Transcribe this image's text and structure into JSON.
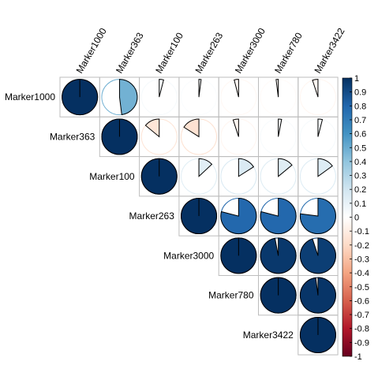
{
  "chart_data": {
    "type": "heatmap",
    "method": "pie",
    "matrix_shape": "upper",
    "variables": [
      "Marker1000",
      "Marker363",
      "Marker100",
      "Marker263",
      "Marker3000",
      "Marker780",
      "Marker3422"
    ],
    "cells": [
      {
        "row": "Marker1000",
        "col": "Marker1000",
        "value": 1.0
      },
      {
        "row": "Marker1000",
        "col": "Marker363",
        "value": 0.48
      },
      {
        "row": "Marker1000",
        "col": "Marker100",
        "value": 0.04
      },
      {
        "row": "Marker1000",
        "col": "Marker263",
        "value": 0.02
      },
      {
        "row": "Marker1000",
        "col": "Marker3000",
        "value": -0.04
      },
      {
        "row": "Marker1000",
        "col": "Marker780",
        "value": -0.02
      },
      {
        "row": "Marker1000",
        "col": "Marker3422",
        "value": -0.05
      },
      {
        "row": "Marker363",
        "col": "Marker363",
        "value": 1.0
      },
      {
        "row": "Marker363",
        "col": "Marker100",
        "value": -0.14
      },
      {
        "row": "Marker363",
        "col": "Marker263",
        "value": -0.16
      },
      {
        "row": "Marker363",
        "col": "Marker3000",
        "value": -0.05
      },
      {
        "row": "Marker363",
        "col": "Marker780",
        "value": 0.03
      },
      {
        "row": "Marker363",
        "col": "Marker3422",
        "value": 0.04
      },
      {
        "row": "Marker100",
        "col": "Marker100",
        "value": 1.0
      },
      {
        "row": "Marker100",
        "col": "Marker263",
        "value": 0.13
      },
      {
        "row": "Marker100",
        "col": "Marker3000",
        "value": 0.16
      },
      {
        "row": "Marker100",
        "col": "Marker780",
        "value": 0.14
      },
      {
        "row": "Marker100",
        "col": "Marker3422",
        "value": 0.15
      },
      {
        "row": "Marker263",
        "col": "Marker263",
        "value": 1.0
      },
      {
        "row": "Marker263",
        "col": "Marker3000",
        "value": 0.79
      },
      {
        "row": "Marker263",
        "col": "Marker780",
        "value": 0.79
      },
      {
        "row": "Marker263",
        "col": "Marker3422",
        "value": 0.77
      },
      {
        "row": "Marker3000",
        "col": "Marker3000",
        "value": 1.0
      },
      {
        "row": "Marker3000",
        "col": "Marker780",
        "value": 0.97
      },
      {
        "row": "Marker3000",
        "col": "Marker3422",
        "value": 0.95
      },
      {
        "row": "Marker780",
        "col": "Marker780",
        "value": 1.0
      },
      {
        "row": "Marker780",
        "col": "Marker3422",
        "value": 0.98
      },
      {
        "row": "Marker3422",
        "col": "Marker3422",
        "value": 1.0
      }
    ],
    "colorbar": {
      "range": [
        -1,
        1
      ],
      "ticks": [
        "1",
        "0.9",
        "0.8",
        "0.7",
        "0.6",
        "0.5",
        "0.4",
        "0.3",
        "0.2",
        "0.1",
        "0",
        "-0.1",
        "-0.2",
        "-0.3",
        "-0.4",
        "-0.5",
        "-0.6",
        "-0.7",
        "-0.8",
        "-0.9",
        "-1"
      ],
      "tick_values": [
        1,
        0.9,
        0.8,
        0.7,
        0.6,
        0.5,
        0.4,
        0.3,
        0.2,
        0.1,
        0,
        -0.1,
        -0.2,
        -0.3,
        -0.4,
        -0.5,
        -0.6,
        -0.7,
        -0.8,
        -0.9,
        -1
      ],
      "palette": [
        "#67001F",
        "#B2182B",
        "#D6604D",
        "#F4A582",
        "#FDDBC7",
        "#FFFFFF",
        "#D1E5F0",
        "#92C5DE",
        "#4393C3",
        "#2166AC",
        "#053061"
      ],
      "placement": "right"
    },
    "grid": true,
    "title": "",
    "xlabel": "",
    "ylabel": ""
  }
}
